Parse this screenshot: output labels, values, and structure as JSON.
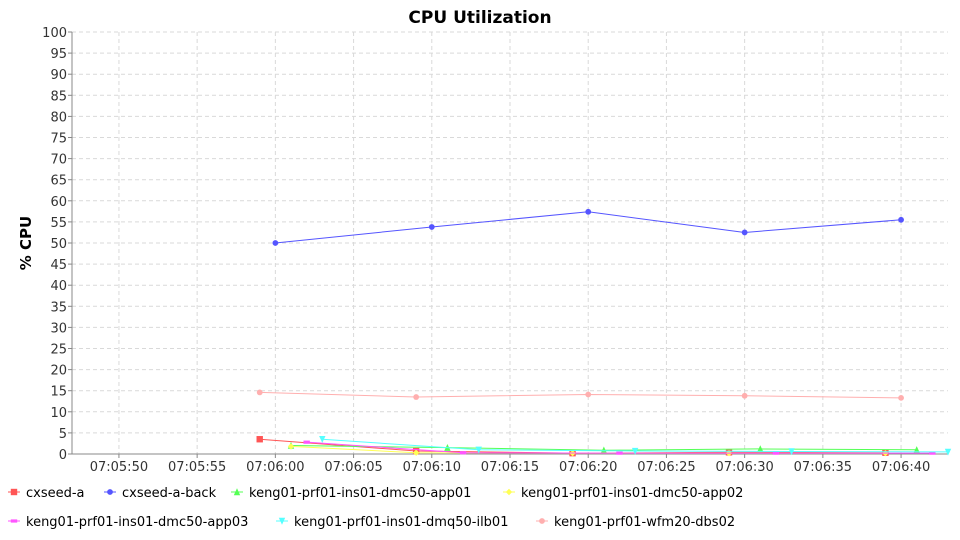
{
  "chart_data": {
    "type": "line",
    "title": "CPU Utilization",
    "xlabel": "",
    "ylabel": "% CPU",
    "ylim": [
      0,
      100
    ],
    "yticks": [
      "0",
      "5",
      "10",
      "15",
      "20",
      "25",
      "30",
      "35",
      "40",
      "45",
      "50",
      "55",
      "60",
      "65",
      "70",
      "75",
      "80",
      "85",
      "90",
      "95",
      "100"
    ],
    "xticks": [
      "07:05:50",
      "07:05:55",
      "07:06:00",
      "07:06:05",
      "07:06:10",
      "07:06:15",
      "07:06:20",
      "07:06:25",
      "07:06:30",
      "07:06:35",
      "07:06:40"
    ],
    "xlim": [
      "07:05:47",
      "07:06:43"
    ],
    "grid": true,
    "legend_position": "bottom",
    "series": [
      {
        "name": "cxseed-a",
        "color": "#ff5555",
        "marker": "square",
        "points": [
          [
            "07:05:59",
            3.5
          ],
          [
            "07:06:09",
            0.7
          ],
          [
            "07:06:19",
            0.2
          ],
          [
            "07:06:29",
            0.4
          ],
          [
            "07:06:39",
            0.3
          ]
        ]
      },
      {
        "name": "cxseed-a-back",
        "color": "#5555ff",
        "marker": "circle",
        "points": [
          [
            "07:06:00",
            50
          ],
          [
            "07:06:10",
            53.8
          ],
          [
            "07:06:20",
            57.4
          ],
          [
            "07:06:30",
            52.5
          ],
          [
            "07:06:40",
            55.5
          ]
        ]
      },
      {
        "name": "keng01-prf01-ins01-dmc50-app01",
        "color": "#55ff55",
        "marker": "triangle",
        "points": [
          [
            "07:06:01",
            2.0
          ],
          [
            "07:06:11",
            1.5
          ],
          [
            "07:06:21",
            0.9
          ],
          [
            "07:06:31",
            1.2
          ],
          [
            "07:06:41",
            1.0
          ]
        ]
      },
      {
        "name": "keng01-prf01-ins01-dmc50-app02",
        "color": "#ffff55",
        "marker": "diamond",
        "points": [
          [
            "07:06:01",
            1.8
          ],
          [
            "07:06:09",
            0.3
          ],
          [
            "07:06:19",
            0.2
          ],
          [
            "07:06:29",
            0.2
          ],
          [
            "07:06:39",
            0.2
          ]
        ]
      },
      {
        "name": "keng01-prf01-ins01-dmc50-app03",
        "color": "#ff55ff",
        "marker": "hbar",
        "points": [
          [
            "07:06:02",
            2.8
          ],
          [
            "07:06:12",
            0.3
          ],
          [
            "07:06:22",
            0.2
          ],
          [
            "07:06:32",
            0.2
          ],
          [
            "07:06:42",
            0.2
          ]
        ]
      },
      {
        "name": "keng01-prf01-ins01-dmq50-ilb01",
        "color": "#55ffff",
        "marker": "triangle-down",
        "points": [
          [
            "07:06:03",
            3.5
          ],
          [
            "07:06:13",
            1.0
          ],
          [
            "07:06:23",
            0.7
          ],
          [
            "07:06:33",
            0.6
          ],
          [
            "07:06:43",
            0.5
          ]
        ]
      },
      {
        "name": "keng01-prf01-wfm20-dbs02",
        "color": "#ffafaf",
        "marker": "circle",
        "points": [
          [
            "07:05:59",
            14.6
          ],
          [
            "07:06:09",
            13.5
          ],
          [
            "07:06:20",
            14.1
          ],
          [
            "07:06:30",
            13.8
          ],
          [
            "07:06:40",
            13.3
          ]
        ]
      }
    ]
  }
}
